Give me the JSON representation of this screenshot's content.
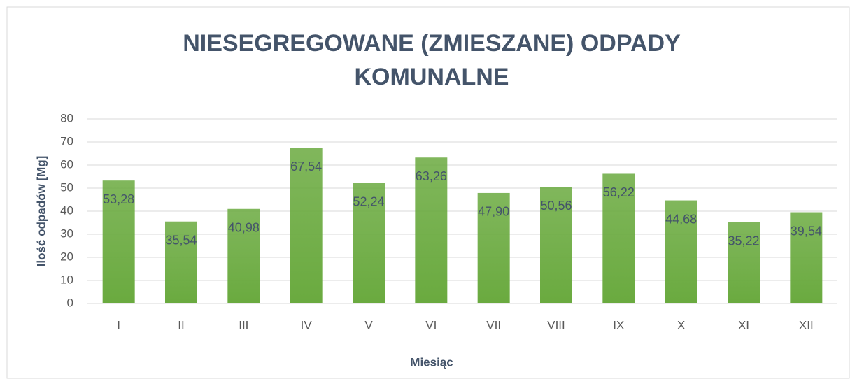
{
  "chart_data": {
    "type": "bar",
    "title": [
      "NIESEGREGOWANE (ZMIESZANE) ODPADY",
      "KOMUNALNE"
    ],
    "x_label": "Miesiąc",
    "y_label": "Ilość odpadów  [Mg]",
    "categories": [
      "I",
      "II",
      "III",
      "IV",
      "V",
      "VI",
      "VII",
      "VIII",
      "IX",
      "X",
      "XI",
      "XII"
    ],
    "values": [
      53.28,
      35.54,
      40.98,
      67.54,
      52.24,
      63.26,
      47.9,
      50.56,
      56.22,
      44.68,
      35.22,
      39.54
    ],
    "value_labels": [
      "53,28",
      "35,54",
      "40,98",
      "67,54",
      "52,24",
      "63,26",
      "47,90",
      "50,56",
      "56,22",
      "44,68",
      "35,22",
      "39,54"
    ],
    "color": "#6aaa3f",
    "ylim": [
      0,
      80
    ],
    "yticks": [
      0,
      10,
      20,
      30,
      40,
      50,
      60,
      70,
      80
    ],
    "grid": true
  }
}
